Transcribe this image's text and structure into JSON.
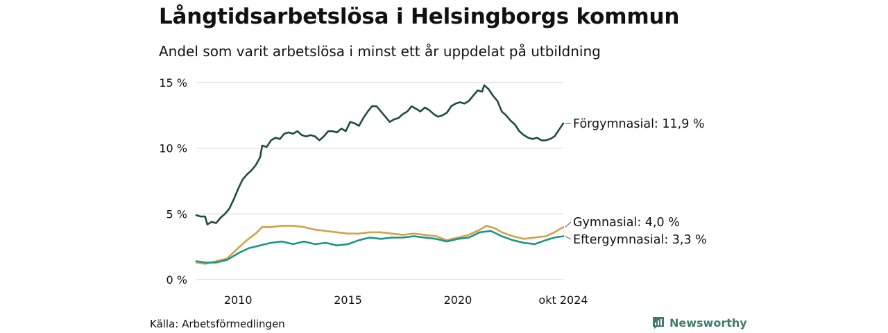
{
  "header": {
    "title": "Långtidsarbetslösa i Helsingborgs kommun",
    "subtitle": "Andel som varit arbetslösa i minst ett år uppdelat på utbildning"
  },
  "footer": {
    "source": "Källa: Arbetsförmedlingen",
    "brand": "Newsworthy"
  },
  "colors": {
    "forgymnasial": "#1f4a40",
    "gymnasial": "#d4a04a",
    "eftergymnasial": "#1a9485",
    "grid": "#d9d9d9",
    "brand": "#3d7d6a"
  },
  "chart_data": {
    "type": "line",
    "title": "Långtidsarbetslösa i Helsingborgs kommun",
    "subtitle": "Andel som varit arbetslösa i minst ett år uppdelat på utbildning",
    "xlabel": "",
    "ylabel": "",
    "xlim": [
      2008.1,
      2024.8
    ],
    "ylim": [
      0,
      15
    ],
    "y_ticks": [
      0,
      5,
      10,
      15
    ],
    "y_tick_labels": [
      "0 %",
      "5 %",
      "10 %",
      "15 %"
    ],
    "x_ticks": [
      2010,
      2015,
      2020,
      2024.8
    ],
    "x_tick_labels": [
      "2010",
      "2015",
      "2020",
      "okt 2024"
    ],
    "grid": "horizontal",
    "legend": "direct labels at line ends",
    "series": [
      {
        "name": "Förgymnasial",
        "end_label": "Förgymnasial: 11,9 %",
        "color": "#1f4a40",
        "points": [
          [
            2008.1,
            4.9
          ],
          [
            2008.3,
            4.8
          ],
          [
            2008.5,
            4.8
          ],
          [
            2008.6,
            4.2
          ],
          [
            2008.8,
            4.4
          ],
          [
            2009.0,
            4.3
          ],
          [
            2009.2,
            4.7
          ],
          [
            2009.4,
            5.0
          ],
          [
            2009.6,
            5.4
          ],
          [
            2009.8,
            6.1
          ],
          [
            2010.0,
            6.9
          ],
          [
            2010.2,
            7.6
          ],
          [
            2010.4,
            8.0
          ],
          [
            2010.6,
            8.3
          ],
          [
            2010.8,
            8.7
          ],
          [
            2011.0,
            9.3
          ],
          [
            2011.1,
            10.2
          ],
          [
            2011.3,
            10.1
          ],
          [
            2011.5,
            10.6
          ],
          [
            2011.7,
            10.8
          ],
          [
            2011.9,
            10.7
          ],
          [
            2012.1,
            11.1
          ],
          [
            2012.3,
            11.2
          ],
          [
            2012.5,
            11.1
          ],
          [
            2012.7,
            11.3
          ],
          [
            2012.9,
            11.0
          ],
          [
            2013.1,
            10.9
          ],
          [
            2013.3,
            11.0
          ],
          [
            2013.5,
            10.9
          ],
          [
            2013.7,
            10.6
          ],
          [
            2013.9,
            10.9
          ],
          [
            2014.1,
            11.3
          ],
          [
            2014.3,
            11.3
          ],
          [
            2014.5,
            11.2
          ],
          [
            2014.7,
            11.5
          ],
          [
            2014.9,
            11.3
          ],
          [
            2015.1,
            12.0
          ],
          [
            2015.3,
            11.9
          ],
          [
            2015.5,
            11.7
          ],
          [
            2015.7,
            12.3
          ],
          [
            2015.9,
            12.8
          ],
          [
            2016.1,
            13.2
          ],
          [
            2016.3,
            13.2
          ],
          [
            2016.5,
            12.8
          ],
          [
            2016.7,
            12.4
          ],
          [
            2016.9,
            12.0
          ],
          [
            2017.1,
            12.2
          ],
          [
            2017.3,
            12.3
          ],
          [
            2017.5,
            12.6
          ],
          [
            2017.7,
            12.8
          ],
          [
            2017.9,
            13.2
          ],
          [
            2018.1,
            13.0
          ],
          [
            2018.3,
            12.8
          ],
          [
            2018.5,
            13.1
          ],
          [
            2018.7,
            12.9
          ],
          [
            2018.9,
            12.6
          ],
          [
            2019.1,
            12.4
          ],
          [
            2019.3,
            12.5
          ],
          [
            2019.5,
            12.7
          ],
          [
            2019.7,
            13.2
          ],
          [
            2019.9,
            13.4
          ],
          [
            2020.1,
            13.5
          ],
          [
            2020.3,
            13.4
          ],
          [
            2020.5,
            13.6
          ],
          [
            2020.7,
            14.0
          ],
          [
            2020.9,
            14.4
          ],
          [
            2021.1,
            14.3
          ],
          [
            2021.2,
            14.8
          ],
          [
            2021.4,
            14.5
          ],
          [
            2021.6,
            14.0
          ],
          [
            2021.8,
            13.6
          ],
          [
            2022.0,
            12.8
          ],
          [
            2022.2,
            12.5
          ],
          [
            2022.4,
            12.1
          ],
          [
            2022.6,
            11.8
          ],
          [
            2022.8,
            11.3
          ],
          [
            2023.0,
            11.0
          ],
          [
            2023.2,
            10.8
          ],
          [
            2023.4,
            10.7
          ],
          [
            2023.6,
            10.8
          ],
          [
            2023.8,
            10.6
          ],
          [
            2024.0,
            10.6
          ],
          [
            2024.2,
            10.7
          ],
          [
            2024.4,
            10.9
          ],
          [
            2024.6,
            11.4
          ],
          [
            2024.8,
            11.9
          ]
        ]
      },
      {
        "name": "Gymnasial",
        "end_label": "Gymnasial:  4,0 %",
        "color": "#d4a04a",
        "points": [
          [
            2008.1,
            1.3
          ],
          [
            2008.5,
            1.2
          ],
          [
            2009.0,
            1.4
          ],
          [
            2009.5,
            1.6
          ],
          [
            2010.0,
            2.4
          ],
          [
            2010.4,
            3.0
          ],
          [
            2010.8,
            3.5
          ],
          [
            2011.1,
            4.0
          ],
          [
            2011.5,
            4.0
          ],
          [
            2012.0,
            4.1
          ],
          [
            2012.5,
            4.1
          ],
          [
            2013.0,
            4.0
          ],
          [
            2013.5,
            3.8
          ],
          [
            2014.0,
            3.7
          ],
          [
            2014.5,
            3.6
          ],
          [
            2015.0,
            3.5
          ],
          [
            2015.5,
            3.5
          ],
          [
            2016.0,
            3.6
          ],
          [
            2016.5,
            3.6
          ],
          [
            2017.0,
            3.5
          ],
          [
            2017.5,
            3.4
          ],
          [
            2018.0,
            3.5
          ],
          [
            2018.5,
            3.4
          ],
          [
            2019.0,
            3.3
          ],
          [
            2019.5,
            3.0
          ],
          [
            2020.0,
            3.2
          ],
          [
            2020.5,
            3.4
          ],
          [
            2021.0,
            3.8
          ],
          [
            2021.3,
            4.1
          ],
          [
            2021.7,
            3.9
          ],
          [
            2022.0,
            3.6
          ],
          [
            2022.5,
            3.3
          ],
          [
            2023.0,
            3.1
          ],
          [
            2023.5,
            3.2
          ],
          [
            2024.0,
            3.3
          ],
          [
            2024.4,
            3.6
          ],
          [
            2024.8,
            4.0
          ]
        ]
      },
      {
        "name": "Eftergymnasial",
        "end_label": "Eftergymnasial:  3,3 %",
        "color": "#1a9485",
        "points": [
          [
            2008.1,
            1.4
          ],
          [
            2008.5,
            1.3
          ],
          [
            2009.0,
            1.3
          ],
          [
            2009.5,
            1.5
          ],
          [
            2010.0,
            2.0
          ],
          [
            2010.5,
            2.4
          ],
          [
            2011.0,
            2.6
          ],
          [
            2011.5,
            2.8
          ],
          [
            2012.0,
            2.9
          ],
          [
            2012.5,
            2.7
          ],
          [
            2013.0,
            2.9
          ],
          [
            2013.5,
            2.7
          ],
          [
            2014.0,
            2.8
          ],
          [
            2014.5,
            2.6
          ],
          [
            2015.0,
            2.7
          ],
          [
            2015.5,
            3.0
          ],
          [
            2016.0,
            3.2
          ],
          [
            2016.5,
            3.1
          ],
          [
            2017.0,
            3.2
          ],
          [
            2017.5,
            3.2
          ],
          [
            2018.0,
            3.3
          ],
          [
            2018.5,
            3.2
          ],
          [
            2019.0,
            3.1
          ],
          [
            2019.5,
            2.9
          ],
          [
            2020.0,
            3.1
          ],
          [
            2020.5,
            3.2
          ],
          [
            2021.0,
            3.6
          ],
          [
            2021.5,
            3.7
          ],
          [
            2022.0,
            3.3
          ],
          [
            2022.5,
            3.0
          ],
          [
            2023.0,
            2.8
          ],
          [
            2023.5,
            2.7
          ],
          [
            2024.0,
            3.0
          ],
          [
            2024.4,
            3.2
          ],
          [
            2024.8,
            3.3
          ]
        ]
      }
    ]
  }
}
